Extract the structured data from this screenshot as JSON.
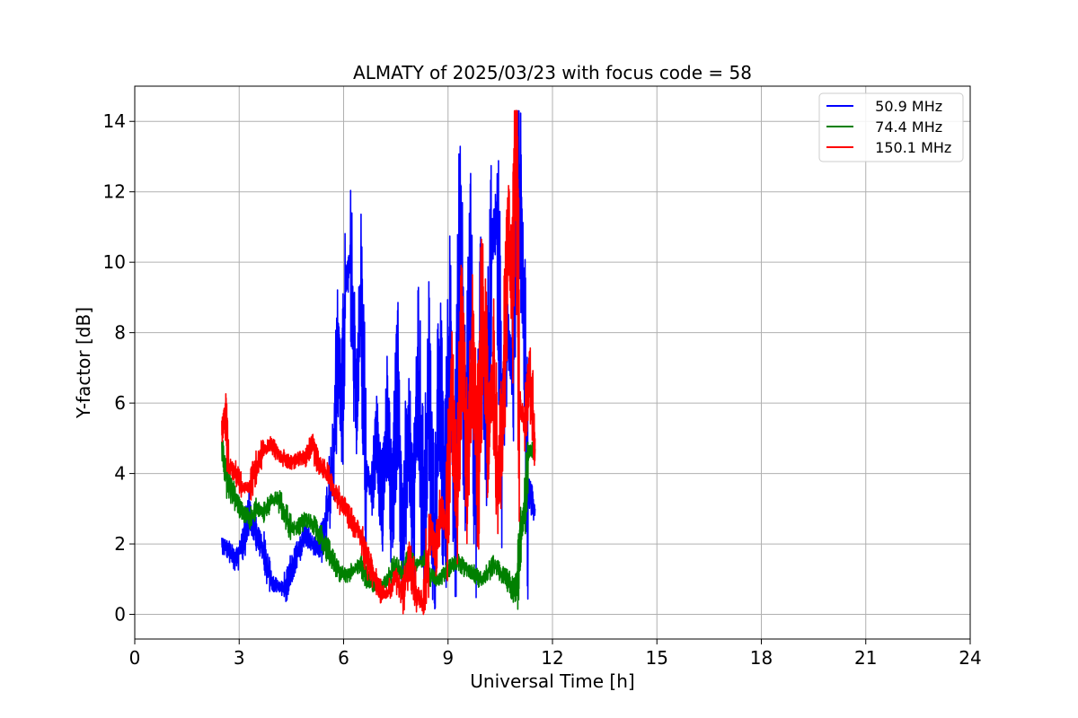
{
  "chart_data": {
    "type": "line",
    "title": "ALMATY of 2025/03/23 with focus code = 58",
    "xlabel": "Universal Time [h]",
    "ylabel": "Y-factor [dB]",
    "xlim": [
      0,
      24
    ],
    "ylim": [
      -0.7,
      15
    ],
    "xticks": [
      0,
      3,
      6,
      9,
      12,
      15,
      18,
      21,
      24
    ],
    "yticks": [
      0,
      2,
      4,
      6,
      8,
      10,
      12,
      14
    ],
    "grid": true,
    "legend_position": "top-right",
    "series": [
      {
        "name": "  50.9 MHz",
        "color": "#0000ff",
        "x": [
          2.5,
          2.7,
          2.9,
          3.1,
          3.3,
          3.5,
          3.7,
          3.9,
          4.1,
          4.3,
          4.5,
          4.7,
          4.9,
          5.1,
          5.3,
          5.5,
          5.7,
          5.85,
          5.95,
          6.05,
          6.2,
          6.35,
          6.5,
          6.65,
          6.8,
          6.95,
          7.1,
          7.25,
          7.4,
          7.55,
          7.7,
          7.85,
          8.0,
          8.15,
          8.3,
          8.45,
          8.6,
          8.75,
          8.9,
          9.05,
          9.2,
          9.35,
          9.5,
          9.65,
          9.8,
          9.95,
          10.1,
          10.25,
          10.4,
          10.55,
          10.7,
          10.85,
          11.0,
          11.15,
          11.3,
          11.5
        ],
        "y": [
          2.0,
          1.8,
          1.5,
          2.0,
          2.9,
          2.3,
          1.8,
          1.0,
          0.8,
          0.7,
          1.3,
          1.8,
          2.3,
          2.0,
          1.8,
          2.6,
          4.5,
          7.8,
          5.5,
          9.3,
          10.0,
          6.0,
          8.8,
          4.0,
          3.5,
          5.0,
          3.0,
          5.5,
          2.5,
          6.6,
          1.9,
          5.8,
          2.5,
          7.1,
          2.0,
          6.5,
          1.5,
          7.3,
          2.4,
          7.9,
          3.2,
          10.7,
          4.5,
          9.7,
          3.3,
          8.3,
          5.0,
          10.2,
          11.4,
          5.2,
          8.1,
          6.9,
          14.2,
          9.4,
          3.5,
          3.0
        ]
      },
      {
        "name": "  74.4 MHz",
        "color": "#008000",
        "x": [
          2.5,
          2.7,
          2.9,
          3.1,
          3.3,
          3.5,
          3.7,
          3.9,
          4.1,
          4.3,
          4.5,
          4.7,
          4.9,
          5.1,
          5.3,
          5.5,
          5.7,
          5.9,
          6.1,
          6.3,
          6.5,
          6.7,
          6.9,
          7.1,
          7.3,
          7.5,
          7.7,
          7.9,
          8.1,
          8.3,
          8.5,
          8.7,
          8.9,
          9.1,
          9.3,
          9.5,
          9.7,
          9.9,
          10.1,
          10.3,
          10.5,
          10.7,
          10.9,
          11.0,
          11.1,
          11.2,
          11.3,
          11.5
        ],
        "y": [
          4.6,
          3.7,
          3.2,
          2.9,
          2.7,
          3.0,
          2.9,
          3.2,
          3.3,
          2.9,
          2.4,
          2.5,
          2.7,
          2.6,
          2.3,
          1.9,
          1.5,
          1.2,
          1.1,
          1.3,
          1.4,
          1.0,
          0.8,
          0.8,
          1.0,
          1.4,
          1.2,
          1.6,
          1.4,
          1.5,
          1.1,
          1.0,
          1.2,
          1.4,
          1.5,
          1.3,
          1.2,
          1.0,
          1.1,
          1.4,
          1.2,
          1.0,
          0.6,
          1.0,
          2.5,
          3.0,
          4.5,
          4.7
        ]
      },
      {
        "name": "  150.1 MHz",
        "color": "#ff0000",
        "x": [
          2.5,
          2.6,
          2.7,
          2.9,
          3.1,
          3.3,
          3.5,
          3.7,
          3.9,
          4.1,
          4.3,
          4.5,
          4.7,
          4.9,
          5.1,
          5.3,
          5.5,
          5.7,
          5.9,
          6.1,
          6.3,
          6.5,
          6.7,
          6.9,
          7.1,
          7.3,
          7.5,
          7.7,
          7.9,
          8.1,
          8.3,
          8.5,
          8.65,
          8.8,
          8.95,
          9.1,
          9.25,
          9.4,
          9.55,
          9.7,
          9.85,
          10.0,
          10.15,
          10.3,
          10.45,
          10.6,
          10.75,
          10.85,
          10.95,
          11.05,
          11.2,
          11.35,
          11.5
        ],
        "y": [
          5.2,
          5.6,
          4.2,
          4.0,
          3.6,
          3.6,
          4.2,
          4.7,
          4.8,
          4.6,
          4.4,
          4.3,
          4.4,
          4.5,
          4.8,
          4.3,
          4.0,
          3.6,
          3.2,
          3.0,
          2.5,
          2.2,
          1.5,
          1.0,
          0.6,
          0.7,
          1.0,
          0.6,
          1.5,
          0.6,
          0.3,
          2.5,
          1.8,
          3.0,
          2.5,
          6.5,
          3.5,
          8.0,
          4.2,
          7.5,
          4.0,
          9.3,
          5.0,
          7.2,
          3.5,
          6.5,
          11.0,
          9.0,
          14.2,
          6.0,
          5.5,
          6.8,
          5.0
        ]
      }
    ]
  }
}
